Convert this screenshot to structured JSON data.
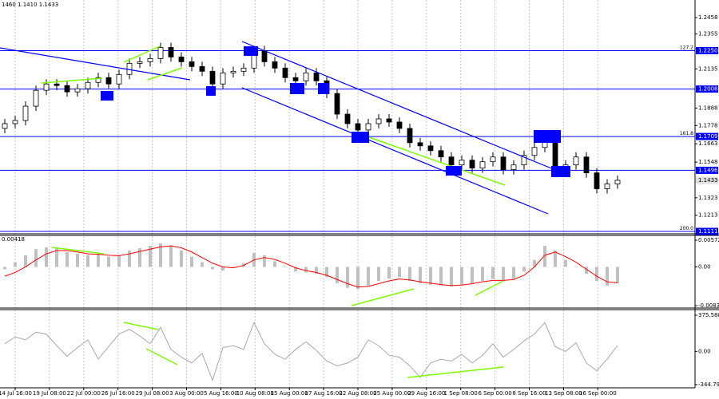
{
  "chart_data": [
    {
      "type": "candlestick",
      "header": "1460 1.1410 1.1433",
      "open": [
        1.176,
        1.179,
        1.181,
        1.19,
        1.2,
        1.204,
        1.203,
        1.199,
        1.201,
        1.205,
        1.208,
        1.204,
        1.21,
        1.217,
        1.218,
        1.22,
        1.227,
        1.221,
        1.218,
        1.215,
        1.212,
        1.204,
        1.211,
        1.212,
        1.214,
        1.225,
        1.218,
        1.214,
        1.208,
        1.206,
        1.211,
        1.206,
        1.198,
        1.185,
        1.179,
        1.175,
        1.179,
        1.182,
        1.18,
        1.176,
        1.167,
        1.165,
        1.162,
        1.158,
        1.153,
        1.156,
        1.151,
        1.155,
        1.158,
        1.15,
        1.153,
        1.159,
        1.164,
        1.169,
        1.151,
        1.153,
        1.158,
        1.148,
        1.138,
        1.141
      ],
      "high": [
        1.182,
        1.184,
        1.193,
        1.203,
        1.207,
        1.207,
        1.206,
        1.204,
        1.208,
        1.211,
        1.211,
        1.213,
        1.22,
        1.221,
        1.223,
        1.23,
        1.23,
        1.224,
        1.221,
        1.218,
        1.215,
        1.214,
        1.215,
        1.217,
        1.228,
        1.228,
        1.221,
        1.217,
        1.211,
        1.214,
        1.214,
        1.209,
        1.201,
        1.188,
        1.182,
        1.182,
        1.185,
        1.185,
        1.183,
        1.179,
        1.17,
        1.168,
        1.165,
        1.161,
        1.159,
        1.159,
        1.158,
        1.161,
        1.161,
        1.156,
        1.162,
        1.167,
        1.172,
        1.172,
        1.156,
        1.161,
        1.161,
        1.151,
        1.144,
        1.1463
      ],
      "low": [
        1.173,
        1.176,
        1.178,
        1.187,
        1.197,
        1.2,
        1.196,
        1.196,
        1.198,
        1.202,
        1.201,
        1.201,
        1.207,
        1.214,
        1.215,
        1.217,
        1.218,
        1.215,
        1.212,
        1.209,
        1.201,
        1.201,
        1.208,
        1.209,
        1.211,
        1.215,
        1.211,
        1.205,
        1.203,
        1.203,
        1.203,
        1.195,
        1.182,
        1.176,
        1.172,
        1.172,
        1.176,
        1.177,
        1.173,
        1.164,
        1.162,
        1.159,
        1.155,
        1.15,
        1.15,
        1.148,
        1.148,
        1.152,
        1.147,
        1.147,
        1.15,
        1.156,
        1.161,
        1.148,
        1.148,
        1.15,
        1.145,
        1.135,
        1.135,
        1.138
      ],
      "close": [
        1.179,
        1.181,
        1.19,
        1.2,
        1.204,
        1.203,
        1.199,
        1.201,
        1.205,
        1.208,
        1.204,
        1.21,
        1.217,
        1.218,
        1.22,
        1.227,
        1.221,
        1.218,
        1.215,
        1.212,
        1.204,
        1.211,
        1.212,
        1.214,
        1.225,
        1.218,
        1.214,
        1.208,
        1.206,
        1.211,
        1.206,
        1.198,
        1.185,
        1.179,
        1.175,
        1.179,
        1.182,
        1.18,
        1.176,
        1.167,
        1.165,
        1.162,
        1.158,
        1.153,
        1.156,
        1.151,
        1.155,
        1.158,
        1.15,
        1.153,
        1.159,
        1.164,
        1.169,
        1.151,
        1.153,
        1.158,
        1.148,
        1.138,
        1.141,
        1.1433
      ],
      "ylim": [
        1.1101,
        1.2569
      ],
      "yticks": [
        1.2458,
        1.2355,
        1.2135,
        1.1888,
        1.1778,
        1.1663,
        1.1548,
        1.1323,
        1.1213
      ],
      "levels": [
        {
          "value": 1.225,
          "label": "1.2250",
          "tag": "127.2"
        },
        {
          "value": 1.2008,
          "label": "1.2008"
        },
        {
          "value": 1.1709,
          "label": "1.1709",
          "tag": "161.8"
        },
        {
          "value": 1.1496,
          "label": "1.1496"
        },
        {
          "value": 1.1111,
          "label": "1.1111",
          "tag": "200.0"
        }
      ],
      "level_color": "#0000ff",
      "last_price": 1.1433,
      "xticks": [
        {
          "value": 1,
          "label": "14 Jul 16:00"
        },
        {
          "value": 4.3,
          "label": "19 Jul 08:00"
        },
        {
          "value": 7.6,
          "label": "22 Jul 00:00"
        },
        {
          "value": 10.9,
          "label": "26 Jul 16:00"
        },
        {
          "value": 14.2,
          "label": "29 Jul 08:00"
        },
        {
          "value": 17.5,
          "label": "3 Aug 00:00"
        },
        {
          "value": 20.8,
          "label": "5 Aug 16:00"
        },
        {
          "value": 24.1,
          "label": "10 Aug 08:00"
        },
        {
          "value": 27.4,
          "label": "15 Aug 00:00"
        },
        {
          "value": 30.7,
          "label": "17 Aug 16:00"
        },
        {
          "value": 34,
          "label": "22 Aug 08:00"
        },
        {
          "value": 37.3,
          "label": "25 Aug 00:00"
        },
        {
          "value": 40.6,
          "label": "29 Aug 16:00"
        },
        {
          "value": 43.9,
          "label": "1 Sep 08:00"
        },
        {
          "value": 47.2,
          "label": "6 Sep 00:00"
        },
        {
          "value": 50.5,
          "label": "8 Sep 16:00"
        },
        {
          "value": 53.8,
          "label": "13 Sep 08:00"
        },
        {
          "value": 57.1,
          "label": "16 Sep 00:00"
        }
      ],
      "grid": true
    },
    {
      "type": "macd",
      "header": "0.00418",
      "values": [
        -0.0005,
        0.001,
        0.0025,
        0.0038,
        0.0042,
        0.004,
        0.0032,
        0.0028,
        0.0025,
        0.0028,
        0.0022,
        0.0025,
        0.0035,
        0.004,
        0.0045,
        0.005,
        0.0046,
        0.0035,
        0.0022,
        0.001,
        -0.0005,
        -0.0008,
        0.0,
        0.0008,
        0.003,
        0.0025,
        0.0012,
        0.0,
        -0.001,
        -0.0012,
        -0.0015,
        -0.0022,
        -0.0035,
        -0.0045,
        -0.0048,
        -0.004,
        -0.003,
        -0.0025,
        -0.0022,
        -0.003,
        -0.0035,
        -0.0038,
        -0.004,
        -0.0042,
        -0.0038,
        -0.0035,
        -0.003,
        -0.0026,
        -0.003,
        -0.0025,
        -0.001,
        0.0015,
        0.0045,
        0.0035,
        0.0015,
        0.0,
        -0.0015,
        -0.003,
        -0.004,
        -0.0035
      ],
      "color": "#c0c0c0",
      "signal": {
        "color": "#ff0000",
        "values": [
          -0.002,
          -0.0012,
          0.0,
          0.0015,
          0.0028,
          0.0035,
          0.0035,
          0.0032,
          0.0028,
          0.0027,
          0.0025,
          0.0024,
          0.0028,
          0.0033,
          0.0038,
          0.0043,
          0.0045,
          0.0041,
          0.0032,
          0.002,
          0.0008,
          0.0,
          -0.0002,
          0.0003,
          0.0015,
          0.002,
          0.0016,
          0.0008,
          -0.0002,
          -0.0008,
          -0.0012,
          -0.0018,
          -0.0027,
          -0.0036,
          -0.0043,
          -0.0042,
          -0.0036,
          -0.003,
          -0.0026,
          -0.0028,
          -0.0032,
          -0.0035,
          -0.0038,
          -0.004,
          -0.0039,
          -0.0036,
          -0.0032,
          -0.0029,
          -0.0029,
          -0.0027,
          -0.0018,
          0.0,
          0.0025,
          0.0032,
          0.0022,
          0.001,
          -0.0005,
          -0.002,
          -0.0032,
          -0.0034
        ]
      },
      "ylim": [
        -0.00899,
        0.00658
      ],
      "yticks": [
        0.00572,
        {
          "value": 0,
          "label": "0.00"
        },
        -0.00831
      ]
    },
    {
      "type": "line",
      "values": [
        80,
        150,
        120,
        200,
        180,
        60,
        -50,
        40,
        120,
        -80,
        50,
        180,
        230,
        160,
        80,
        250,
        20,
        -60,
        -120,
        -20,
        -300,
        40,
        60,
        20,
        300,
        80,
        -30,
        -80,
        20,
        100,
        10,
        -100,
        -150,
        -120,
        -60,
        120,
        60,
        -40,
        -60,
        -150,
        -270,
        -120,
        -80,
        -100,
        -30,
        -120,
        -40,
        80,
        -60,
        20,
        110,
        180,
        300,
        50,
        0,
        90,
        -120,
        -200,
        -80,
        60
      ],
      "color": "#a9a9a9",
      "ylim": [
        -377.9,
        425.3
      ],
      "yticks": [
        375.5808,
        {
          "value": 0,
          "label": "0.00"
        },
        -344.798
      ]
    }
  ]
}
